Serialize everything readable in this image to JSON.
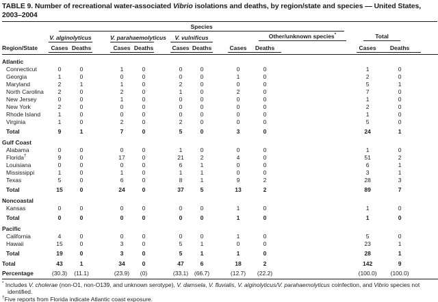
{
  "title": {
    "part1": "TABLE 9. Number of recreational water-associated",
    "part2": "Vibrio",
    "part3": "isolations and deaths, by region/state and species — United States, 2003–2004"
  },
  "table": {
    "header": {
      "region_state": "Region/State",
      "species_band": "Species",
      "groups": [
        {
          "name": "V. alginolyticus",
          "italic": true
        },
        {
          "name": "V. parahaemolyticus",
          "italic": true
        },
        {
          "name": "V. vulnificus",
          "italic": true
        },
        {
          "name": "Other/unknown species",
          "marker": "*",
          "italic": false
        },
        {
          "name": "Total",
          "italic": false
        }
      ],
      "cases_label": "Cases",
      "deaths_label": "Deaths"
    },
    "sections": [
      {
        "name": "Atlantic",
        "rows": [
          {
            "state": "Connecticut",
            "values": [
              "0",
              "0",
              "1",
              "0",
              "0",
              "0",
              "0",
              "0",
              "1",
              "0"
            ]
          },
          {
            "state": "Georgia",
            "values": [
              "1",
              "0",
              "0",
              "0",
              "0",
              "0",
              "1",
              "0",
              "2",
              "0"
            ]
          },
          {
            "state": "Maryland",
            "values": [
              "2",
              "1",
              "1",
              "0",
              "2",
              "0",
              "0",
              "0",
              "5",
              "1"
            ]
          },
          {
            "state": "North Carolina",
            "values": [
              "2",
              "0",
              "2",
              "0",
              "1",
              "0",
              "2",
              "0",
              "7",
              "0"
            ]
          },
          {
            "state": "New Jersey",
            "values": [
              "0",
              "0",
              "1",
              "0",
              "0",
              "0",
              "0",
              "0",
              "1",
              "0"
            ]
          },
          {
            "state": "New York",
            "values": [
              "2",
              "0",
              "0",
              "0",
              "0",
              "0",
              "0",
              "0",
              "2",
              "0"
            ]
          },
          {
            "state": "Rhode Island",
            "values": [
              "1",
              "0",
              "0",
              "0",
              "0",
              "0",
              "0",
              "0",
              "1",
              "0"
            ]
          },
          {
            "state": "Virginia",
            "values": [
              "1",
              "0",
              "2",
              "0",
              "2",
              "0",
              "0",
              "0",
              "5",
              "0"
            ]
          }
        ],
        "total_label": "Total",
        "total": [
          "9",
          "1",
          "7",
          "0",
          "5",
          "0",
          "3",
          "0",
          "24",
          "1"
        ]
      },
      {
        "name": "Gulf Coast",
        "rows": [
          {
            "state": "Alabama",
            "values": [
              "0",
              "0",
              "0",
              "0",
              "1",
              "0",
              "0",
              "0",
              "1",
              "0"
            ]
          },
          {
            "state": "Florida",
            "marker": "†",
            "values": [
              "9",
              "0",
              "17",
              "0",
              "21",
              "2",
              "4",
              "0",
              "51",
              "2"
            ]
          },
          {
            "state": "Louisiana",
            "values": [
              "0",
              "0",
              "0",
              "0",
              "6",
              "1",
              "0",
              "0",
              "6",
              "1"
            ]
          },
          {
            "state": "Mississippi",
            "values": [
              "1",
              "0",
              "1",
              "0",
              "1",
              "1",
              "0",
              "0",
              "3",
              "1"
            ]
          },
          {
            "state": "Texas",
            "values": [
              "5",
              "0",
              "6",
              "0",
              "8",
              "1",
              "9",
              "2",
              "28",
              "3"
            ]
          }
        ],
        "total_label": "Total",
        "total": [
          "15",
          "0",
          "24",
          "0",
          "37",
          "5",
          "13",
          "2",
          "89",
          "7"
        ]
      },
      {
        "name": "Noncoastal",
        "rows": [
          {
            "state": "Kansas",
            "values": [
              "0",
              "0",
              "0",
              "0",
              "0",
              "0",
              "1",
              "0",
              "1",
              "0"
            ]
          }
        ],
        "total_label": "Total",
        "total": [
          "0",
          "0",
          "0",
          "0",
          "0",
          "0",
          "1",
          "0",
          "1",
          "0"
        ]
      },
      {
        "name": "Pacific",
        "rows": [
          {
            "state": "California",
            "values": [
              "4",
              "0",
              "0",
              "0",
              "0",
              "0",
              "1",
              "0",
              "5",
              "0"
            ]
          },
          {
            "state": "Hawaii",
            "values": [
              "15",
              "0",
              "3",
              "0",
              "5",
              "1",
              "0",
              "0",
              "23",
              "1"
            ]
          }
        ],
        "total_label": "Total",
        "total": [
          "19",
          "0",
          "3",
          "0",
          "5",
          "1",
          "1",
          "0",
          "28",
          "1"
        ]
      }
    ],
    "grand_total_label": "Total",
    "grand_total": [
      "43",
      "1",
      "34",
      "0",
      "47",
      "6",
      "18",
      "2",
      "142",
      "9"
    ],
    "percentage_label": "Percentage",
    "percentage": [
      "(30.3)",
      "(11.1)",
      "(23.9)",
      "(0)",
      "(33.1)",
      "(66.7)",
      "(12.7)",
      "(22.2)",
      "(100.0)",
      "(100.0)"
    ]
  },
  "footnotes": [
    {
      "marker": "*",
      "segments": [
        {
          "text": " Includes "
        },
        {
          "text": "V. cholerae",
          "italic": true
        },
        {
          "text": " (non-O1, non-O139, and unknown serotype), "
        },
        {
          "text": "V. damsela",
          "italic": true
        },
        {
          "text": ", "
        },
        {
          "text": "V. fluvialis",
          "italic": true
        },
        {
          "text": ", "
        },
        {
          "text": "V. alginolyticus/V. parahaemolyticus",
          "italic": true
        },
        {
          "text": " coinfection, and "
        },
        {
          "text": "Vibrio",
          "italic": true
        },
        {
          "text": " species not identified."
        }
      ]
    },
    {
      "marker": "†",
      "segments": [
        {
          "text": "Five reports from Florida indicate Atlantic coast exposure."
        }
      ]
    }
  ]
}
